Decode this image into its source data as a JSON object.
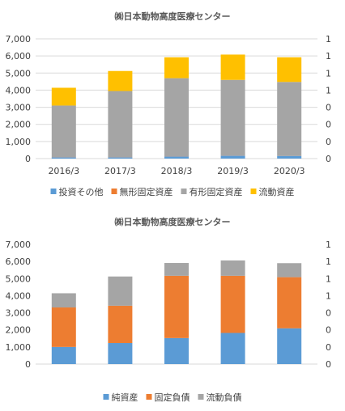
{
  "chart_data": [
    {
      "type": "bar",
      "stacked": true,
      "title": "㈱日本動物高度医療センター",
      "categories": [
        "2016/3",
        "2017/3",
        "2018/3",
        "2019/3",
        "2020/3"
      ],
      "ylim": [
        0,
        7000
      ],
      "yticks": [
        "0",
        "1,000",
        "2,000",
        "3,000",
        "4,000",
        "5,000",
        "6,000",
        "7,000"
      ],
      "y2ticks": [
        "0",
        "0",
        "0",
        "0",
        "1",
        "1",
        "1",
        "1"
      ],
      "grid": true,
      "legend_position": "bottom",
      "series": [
        {
          "name": "投資その他",
          "color": "#5b9bd5",
          "values": [
            80,
            80,
            130,
            170,
            160
          ]
        },
        {
          "name": "無形固定資産",
          "color": "#ed7d31",
          "values": [
            10,
            10,
            10,
            10,
            10
          ]
        },
        {
          "name": "有形固定資産",
          "color": "#a5a5a5",
          "values": [
            3010,
            3860,
            4560,
            4420,
            4310
          ]
        },
        {
          "name": "流動資産",
          "color": "#ffc000",
          "values": [
            1040,
            1170,
            1220,
            1480,
            1440
          ]
        }
      ]
    },
    {
      "type": "bar",
      "stacked": true,
      "title": "㈱日本動物高度医療センター",
      "categories": [
        "",
        "",
        "",
        "",
        ""
      ],
      "ylim": [
        0,
        7000
      ],
      "yticks": [
        "0",
        "1,000",
        "2,000",
        "3,000",
        "4,000",
        "5,000",
        "6,000",
        "7,000"
      ],
      "y2ticks": [
        "0",
        "0",
        "0",
        "0",
        "1",
        "1",
        "1",
        "1"
      ],
      "grid": false,
      "legend_position": "bottom",
      "series": [
        {
          "name": "純資産",
          "color": "#5b9bd5",
          "values": [
            1000,
            1230,
            1520,
            1820,
            2090
          ]
        },
        {
          "name": "固定負債",
          "color": "#ed7d31",
          "values": [
            2310,
            2180,
            3640,
            3340,
            2990
          ]
        },
        {
          "name": "流動負債",
          "color": "#a5a5a5",
          "values": [
            830,
            1710,
            750,
            900,
            820
          ]
        }
      ]
    }
  ]
}
